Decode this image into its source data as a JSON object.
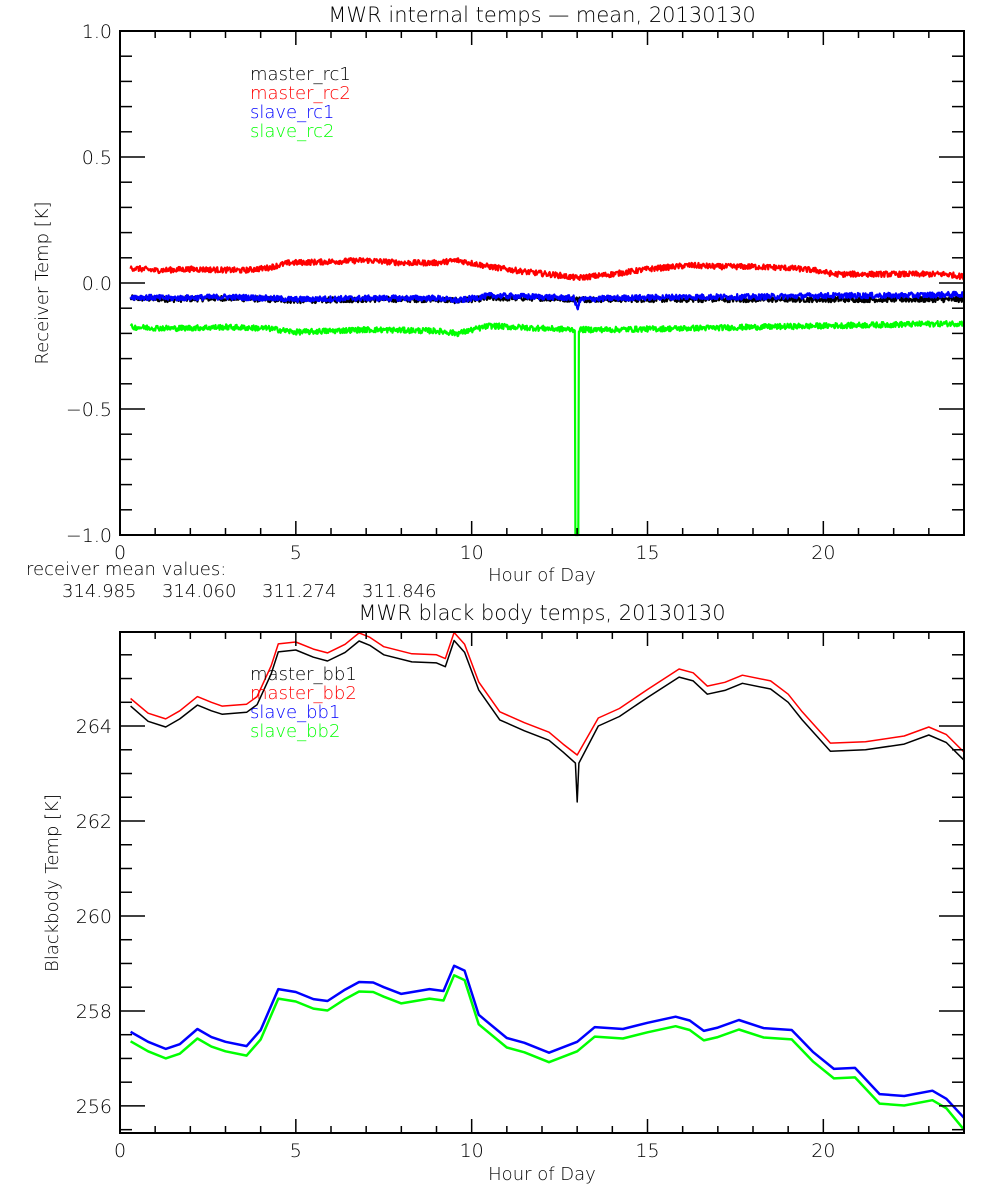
{
  "chart_data": [
    {
      "type": "line",
      "title": "MWR internal temps — mean, 20130130",
      "xlabel": "Hour of Day",
      "ylabel": "Receiver Temp [K]",
      "xlim": [
        0,
        24
      ],
      "ylim": [
        -1.0,
        1.0
      ],
      "xticks": [
        0,
        5,
        10,
        15,
        20
      ],
      "xtick_labels": [
        "0",
        "5",
        "10",
        "15",
        "20"
      ],
      "yticks": [
        -1.0,
        -0.5,
        0.0,
        0.5,
        1.0
      ],
      "ytick_labels": [
        "−1.0",
        "−0.5",
        "0.0",
        "0.5",
        "1.0"
      ],
      "grid": false,
      "legend_position": "top-left",
      "series": [
        {
          "name": "master_rc1",
          "color": "#000000",
          "noisy": true,
          "x": [
            0.3,
            1.5,
            3.0,
            4.2,
            5.0,
            7.0,
            9.0,
            9.6,
            10.5,
            12.0,
            13.0,
            14.0,
            16.0,
            18.0,
            20.0,
            22.0,
            24.0
          ],
          "y": [
            -0.06,
            -0.065,
            -0.06,
            -0.065,
            -0.07,
            -0.065,
            -0.065,
            -0.07,
            -0.06,
            -0.06,
            -0.065,
            -0.065,
            -0.065,
            -0.065,
            -0.065,
            -0.065,
            -0.065
          ]
        },
        {
          "name": "master_rc2",
          "color": "#ff0000",
          "noisy": true,
          "x": [
            0.3,
            1.0,
            2.0,
            3.5,
            4.2,
            4.8,
            6.0,
            7.0,
            8.0,
            9.0,
            9.6,
            10.5,
            11.5,
            12.5,
            13.0,
            14.0,
            15.0,
            16.2,
            17.0,
            18.0,
            19.0,
            19.8,
            20.3,
            21.5,
            22.5,
            23.5,
            24.0
          ],
          "y": [
            0.06,
            0.05,
            0.055,
            0.05,
            0.06,
            0.08,
            0.085,
            0.09,
            0.08,
            0.08,
            0.09,
            0.065,
            0.045,
            0.03,
            0.02,
            0.035,
            0.055,
            0.07,
            0.065,
            0.065,
            0.06,
            0.05,
            0.035,
            0.035,
            0.035,
            0.035,
            0.025
          ]
        },
        {
          "name": "slave_rc1",
          "color": "#0000ff",
          "noisy": true,
          "x": [
            0.3,
            1.5,
            3.0,
            4.2,
            5.0,
            7.0,
            9.0,
            9.6,
            10.5,
            12.0,
            12.9,
            13.0,
            13.1,
            14.0,
            16.0,
            18.0,
            20.0,
            22.0,
            24.0
          ],
          "y": [
            -0.055,
            -0.06,
            -0.055,
            -0.06,
            -0.065,
            -0.06,
            -0.06,
            -0.07,
            -0.05,
            -0.055,
            -0.06,
            -0.1,
            -0.065,
            -0.06,
            -0.055,
            -0.055,
            -0.05,
            -0.05,
            -0.045
          ]
        },
        {
          "name": "slave_rc2",
          "color": "#00ff00",
          "noisy": true,
          "x": [
            0.3,
            1.5,
            3.0,
            4.2,
            5.0,
            7.0,
            9.0,
            9.6,
            10.5,
            12.0,
            12.9,
            13.0,
            13.1,
            14.0,
            16.0,
            18.0,
            20.0,
            22.0,
            24.0
          ],
          "y": [
            -0.175,
            -0.18,
            -0.175,
            -0.18,
            -0.195,
            -0.185,
            -0.19,
            -0.2,
            -0.17,
            -0.18,
            -0.185,
            -1.0,
            -0.185,
            -0.185,
            -0.18,
            -0.175,
            -0.17,
            -0.165,
            -0.16
          ]
        }
      ],
      "annotation": {
        "label": "receiver mean values:",
        "values": [
          {
            "text": "314.985",
            "color": "#000000"
          },
          {
            "text": "314.060",
            "color": "#ff0000"
          },
          {
            "text": "311.274",
            "color": "#0000ff"
          },
          {
            "text": "311.846",
            "color": "#00ff00"
          }
        ]
      }
    },
    {
      "type": "line",
      "title": "MWR black body temps, 20130130",
      "xlabel": "Hour of Day",
      "ylabel": "Blackbody Temp [K]",
      "xlim": [
        0,
        24
      ],
      "ylim": [
        255.43,
        265.98
      ],
      "xticks": [
        0,
        5,
        10,
        15,
        20
      ],
      "xtick_labels": [
        "0",
        "5",
        "10",
        "15",
        "20"
      ],
      "yticks": [
        256,
        258,
        260,
        262,
        264
      ],
      "ytick_labels": [
        "256",
        "258",
        "260",
        "262",
        "264"
      ],
      "grid": false,
      "legend_position": "top-left",
      "series": [
        {
          "name": "master_bb1",
          "color": "#000000",
          "x": [
            0.3,
            0.8,
            1.3,
            1.7,
            2.2,
            2.6,
            2.9,
            3.6,
            3.9,
            4.3,
            4.5,
            5.0,
            5.5,
            5.9,
            6.4,
            6.8,
            7.1,
            7.5,
            8.3,
            9.0,
            9.25,
            9.5,
            9.8,
            10.2,
            10.8,
            11.5,
            12.2,
            12.6,
            12.95,
            13.0,
            13.05,
            13.6,
            14.2,
            15.0,
            15.9,
            16.3,
            16.7,
            17.2,
            17.7,
            18.5,
            19.0,
            19.4,
            20.2,
            21.2,
            22.3,
            23.0,
            23.5,
            24.0
          ],
          "y": [
            264.42,
            264.1,
            263.98,
            264.15,
            264.44,
            264.32,
            264.25,
            264.29,
            264.45,
            265.1,
            265.56,
            265.6,
            265.45,
            265.37,
            265.55,
            265.79,
            265.7,
            265.5,
            265.35,
            265.33,
            265.25,
            265.8,
            265.55,
            264.76,
            264.13,
            263.9,
            263.7,
            263.45,
            263.22,
            262.4,
            263.22,
            264.0,
            264.2,
            264.6,
            265.03,
            264.95,
            264.67,
            264.75,
            264.9,
            264.78,
            264.5,
            264.13,
            263.47,
            263.5,
            263.62,
            263.81,
            263.65,
            263.28
          ]
        },
        {
          "name": "master_bb2",
          "color": "#ff0000",
          "x": [
            0.3,
            0.8,
            1.3,
            1.7,
            2.2,
            2.6,
            2.9,
            3.6,
            3.9,
            4.3,
            4.5,
            5.0,
            5.5,
            5.9,
            6.4,
            6.8,
            7.1,
            7.5,
            8.3,
            9.0,
            9.25,
            9.5,
            9.8,
            10.2,
            10.8,
            11.5,
            12.2,
            12.6,
            13.0,
            13.6,
            14.2,
            15.0,
            15.9,
            16.3,
            16.7,
            17.2,
            17.7,
            18.5,
            19.0,
            19.4,
            20.2,
            21.2,
            22.3,
            23.0,
            23.5,
            24.0
          ],
          "y": [
            264.58,
            264.27,
            264.15,
            264.32,
            264.62,
            264.5,
            264.42,
            264.46,
            264.62,
            265.27,
            265.73,
            265.77,
            265.62,
            265.54,
            265.72,
            265.96,
            265.87,
            265.67,
            265.52,
            265.5,
            265.42,
            265.97,
            265.72,
            264.93,
            264.3,
            264.07,
            263.87,
            263.62,
            263.39,
            264.17,
            264.37,
            264.77,
            265.2,
            265.12,
            264.84,
            264.92,
            265.07,
            264.95,
            264.67,
            264.3,
            263.64,
            263.67,
            263.79,
            263.98,
            263.82,
            263.45
          ]
        },
        {
          "name": "slave_bb1",
          "color": "#0000ff",
          "x": [
            0.3,
            0.8,
            1.3,
            1.7,
            2.2,
            2.6,
            3.0,
            3.6,
            4.0,
            4.5,
            5.0,
            5.5,
            5.9,
            6.4,
            6.8,
            7.2,
            7.5,
            8.0,
            8.8,
            9.2,
            9.5,
            9.8,
            10.2,
            11.0,
            11.5,
            12.2,
            13.0,
            13.5,
            14.3,
            15.0,
            15.8,
            16.2,
            16.6,
            17.0,
            17.6,
            18.3,
            19.1,
            19.7,
            20.3,
            20.9,
            21.6,
            22.3,
            23.1,
            23.5,
            24.0
          ],
          "y": [
            257.56,
            257.35,
            257.2,
            257.3,
            257.62,
            257.45,
            257.35,
            257.26,
            257.6,
            258.46,
            258.4,
            258.25,
            258.21,
            258.45,
            258.61,
            258.6,
            258.5,
            258.36,
            258.46,
            258.42,
            258.95,
            258.85,
            257.92,
            257.43,
            257.33,
            257.12,
            257.35,
            257.66,
            257.62,
            257.75,
            257.88,
            257.8,
            257.58,
            257.65,
            257.81,
            257.64,
            257.6,
            257.14,
            256.78,
            256.8,
            256.25,
            256.21,
            256.32,
            256.15,
            255.75
          ]
        },
        {
          "name": "slave_bb2",
          "color": "#00ff00",
          "x": [
            0.3,
            0.8,
            1.3,
            1.7,
            2.2,
            2.6,
            3.0,
            3.6,
            4.0,
            4.5,
            5.0,
            5.5,
            5.9,
            6.4,
            6.8,
            7.2,
            7.5,
            8.0,
            8.8,
            9.2,
            9.5,
            9.8,
            10.2,
            11.0,
            11.5,
            12.2,
            13.0,
            13.5,
            14.3,
            15.0,
            15.8,
            16.2,
            16.6,
            17.0,
            17.6,
            18.3,
            19.1,
            19.7,
            20.3,
            20.9,
            21.6,
            22.3,
            23.1,
            23.5,
            24.0
          ],
          "y": [
            257.36,
            257.15,
            257.0,
            257.1,
            257.42,
            257.25,
            257.15,
            257.06,
            257.4,
            258.26,
            258.2,
            258.05,
            258.01,
            258.25,
            258.41,
            258.4,
            258.3,
            258.16,
            258.26,
            258.22,
            258.75,
            258.65,
            257.72,
            257.23,
            257.13,
            256.92,
            257.15,
            257.46,
            257.42,
            257.55,
            257.68,
            257.6,
            257.38,
            257.45,
            257.61,
            257.44,
            257.4,
            256.94,
            256.58,
            256.6,
            256.05,
            256.01,
            256.12,
            255.95,
            255.5
          ]
        }
      ]
    }
  ]
}
